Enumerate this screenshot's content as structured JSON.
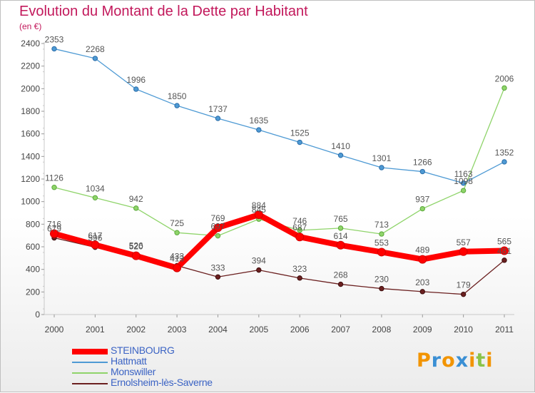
{
  "title": "Evolution du Montant de la Dette par Habitant",
  "subtitle": "(en €)",
  "logo": {
    "text": "Proxiti",
    "letters": [
      "P",
      "r",
      "o",
      "x",
      "i",
      "t",
      "i"
    ],
    "colors": [
      "#f29400",
      "#3a8fd4",
      "#f29400",
      "#3a8fd4",
      "#f29400",
      "#8bc34a",
      "#f29400"
    ]
  },
  "chart_data": {
    "type": "line",
    "title": "Evolution du Montant de la Dette par Habitant",
    "ylabel": "(en €)",
    "x": [
      "2000",
      "2001",
      "2002",
      "2003",
      "2004",
      "2005",
      "2006",
      "2007",
      "2008",
      "2009",
      "2010",
      "2011"
    ],
    "ylim": [
      0,
      2400
    ],
    "yticks": [
      0,
      200,
      400,
      600,
      800,
      1000,
      1200,
      1400,
      1600,
      1800,
      2000,
      2200,
      2400
    ],
    "grid": false,
    "legend_position": "bottom-left",
    "series": [
      {
        "name": "STEINBOURG",
        "color": "#ff0000",
        "values": [
          716,
          617,
          520,
          413,
          769,
          884,
          687,
          614,
          553,
          489,
          557,
          565
        ]
      },
      {
        "name": "Hattmatt",
        "color": "#4e9ad4",
        "values": [
          2353,
          2268,
          1996,
          1850,
          1737,
          1635,
          1525,
          1410,
          1301,
          1266,
          1163,
          1352
        ]
      },
      {
        "name": "Monswiller",
        "color": "#8fd46a",
        "values": [
          1126,
          1034,
          942,
          725,
          697,
          845,
          746,
          765,
          713,
          937,
          1098,
          2006
        ]
      },
      {
        "name": "Ernolsheim-lès-Saverne",
        "color": "#6b2020",
        "values": [
          679,
          596,
          526,
          433,
          333,
          394,
          323,
          268,
          230,
          203,
          179,
          481
        ]
      }
    ]
  }
}
